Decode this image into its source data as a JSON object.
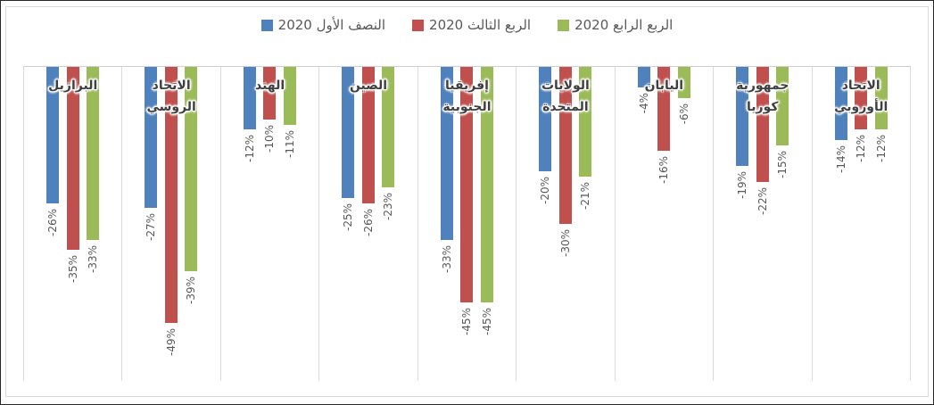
{
  "chart_data": {
    "type": "bar",
    "orientation": "vertical-negative",
    "rtl": true,
    "title": "",
    "categories": [
      "البرازيل",
      "الاتحاد الروسي",
      "الهند",
      "الصين",
      "إفريقيا الجنوبية",
      "الولايات المتحدة",
      "اليابان",
      "جمهورية كوريا",
      "الاتحاد الأوروبي"
    ],
    "series": [
      {
        "name": "النصف الأول 2020",
        "color": "#4F81BD",
        "values": [
          -26,
          -27,
          -12,
          -25,
          -33,
          -20,
          -4,
          -19,
          -14
        ],
        "labels": [
          "-26%",
          "-27%",
          "-12%",
          "-25%",
          "-33%",
          "-20%",
          "-4%",
          "-19%",
          "-14%"
        ]
      },
      {
        "name": "الربع الثالث 2020",
        "color": "#C0504D",
        "values": [
          -35,
          -49,
          -10,
          -26,
          -45,
          -30,
          -16,
          -22,
          -12
        ],
        "labels": [
          "-35%",
          "-49%",
          "-10%",
          "-26%",
          "-45%",
          "-30%",
          "-16%",
          "-22%",
          "-12%"
        ]
      },
      {
        "name": "الربع الرابع 2020",
        "color": "#9BBB59",
        "values": [
          -33,
          -39,
          -11,
          -23,
          -45,
          -21,
          -6,
          -15,
          -12
        ],
        "labels": [
          "-33%",
          "-39%",
          "-11%",
          "-23%",
          "-45%",
          "-21%",
          "-6%",
          "-15%",
          "-12%"
        ]
      }
    ],
    "ylim": [
      -60,
      0
    ],
    "y_axis_labels_visible": false,
    "grid": "vertical category separators only",
    "legend_position": "top-center",
    "value_label_style": "rotated 90deg, reads bottom-to-top, percent sign nearest bar end"
  },
  "colors": {
    "series_blue": "#4F81BD",
    "series_red": "#C0504D",
    "series_green": "#9BBB59",
    "gridline": "#DADADA",
    "zero_axis_line": "#CFCFCF",
    "value_label_text": "#595959",
    "category_label_text": "#3F3F3F",
    "legend_text": "#595959",
    "chart_border": "#D9D9D9",
    "outer_border": "#262626",
    "background": "#FFFFFF"
  }
}
